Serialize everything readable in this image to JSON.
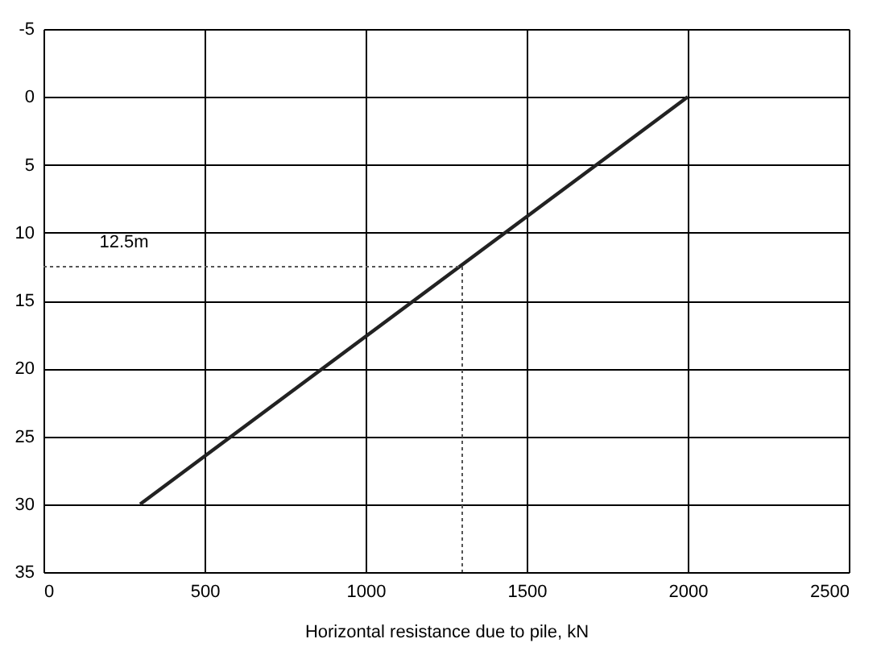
{
  "chart_data": {
    "type": "line",
    "xlabel": "Horizontal resistance due to pile, kN",
    "xlim": [
      0,
      2500
    ],
    "xticks": [
      0,
      500,
      1000,
      1500,
      2000,
      2500
    ],
    "ylim": [
      35,
      -5
    ],
    "yticks": [
      -5,
      0,
      5,
      10,
      15,
      20,
      25,
      30,
      35
    ],
    "grid": true,
    "marker": "none",
    "series": [
      {
        "color": "#222222",
        "x": [
          300,
          2000
        ],
        "values": [
          30,
          0
        ],
        "line_style": "solid"
      },
      {
        "color": "#555555",
        "x": [
          0,
          1300,
          1300
        ],
        "values": [
          12.5,
          12.5,
          35
        ],
        "line_style": "dotted"
      }
    ],
    "annotations": [
      {
        "text": "12.5m",
        "x": 250,
        "y": 12.5
      }
    ]
  }
}
